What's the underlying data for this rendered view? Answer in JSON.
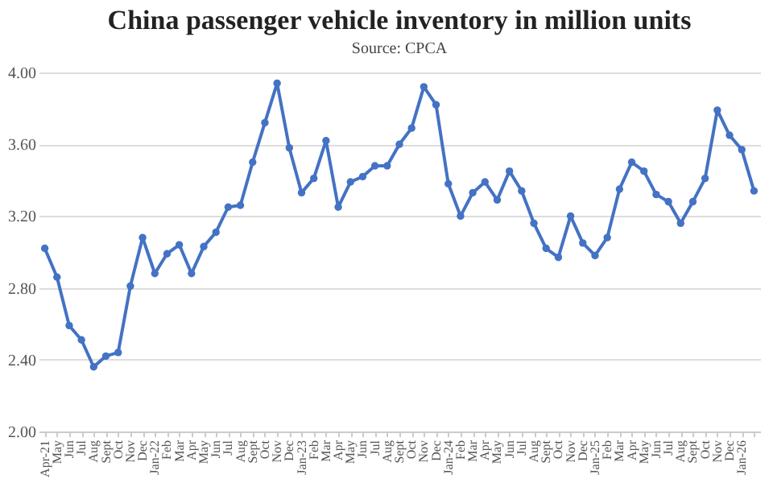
{
  "chart_data": {
    "type": "line",
    "title": "China passenger vehicle inventory in million units",
    "categories": [
      "Apr-21",
      "May",
      "Jun",
      "Jul",
      "Aug",
      "Sept",
      "Oct",
      "Nov",
      "Dec",
      "Jan-22",
      "Feb",
      "Mar",
      "Apr",
      "May",
      "Jun",
      "Jul",
      "Aug",
      "Sept",
      "Oct",
      "Nov",
      "Dec",
      "Jan-23",
      "Feb",
      "Mar",
      "Apr",
      "May",
      "Jun",
      "Jul",
      "Aug",
      "Sept",
      "Oct",
      "Nov",
      "Dec",
      "Jan-24",
      "Feb",
      "Mar",
      "Apr",
      "May",
      "Jun",
      "Jul",
      "Aug",
      "Sept",
      "Oct",
      "Nov",
      "Dec",
      "Jan-25",
      "Feb",
      "Mar",
      "Apr",
      "May",
      "Jun",
      "Jul",
      "Aug",
      "Sept",
      "Oct",
      "Nov",
      "Dec",
      "Jan-26",
      null
    ],
    "series": [
      {
        "color": "#4472c4",
        "values": [
          3.02,
          2.86,
          2.59,
          2.51,
          2.36,
          2.42,
          2.44,
          2.81,
          3.08,
          2.88,
          2.99,
          3.04,
          2.88,
          3.03,
          3.11,
          3.25,
          3.26,
          3.5,
          3.72,
          3.94,
          3.58,
          3.33,
          3.41,
          3.62,
          3.25,
          3.39,
          3.42,
          3.48,
          3.48,
          3.6,
          3.69,
          3.92,
          3.82,
          3.38,
          3.2,
          3.33,
          3.39,
          3.29,
          3.45,
          3.34,
          3.16,
          3.02,
          2.97,
          3.2,
          3.05,
          2.98,
          3.08,
          3.35,
          3.5,
          3.45,
          3.32,
          3.28,
          3.16,
          3.28,
          3.41,
          3.79,
          3.65,
          3.57,
          3.34
        ]
      }
    ],
    "ylim": [
      2,
      4
    ],
    "yticks": [
      {
        "value": 2,
        "label": "2.00"
      },
      {
        "value": 2.4,
        "label": "2.40"
      },
      {
        "value": 2.8,
        "label": "2.80"
      },
      {
        "value": 3.2,
        "label": "3.20"
      },
      {
        "value": 3.6,
        "label": "3.60"
      },
      {
        "value": 4,
        "label": "4.00"
      }
    ],
    "grid": "y",
    "marker": "circle",
    "line_style": "solid",
    "annotations": [
      "Source: CPCA"
    ]
  }
}
